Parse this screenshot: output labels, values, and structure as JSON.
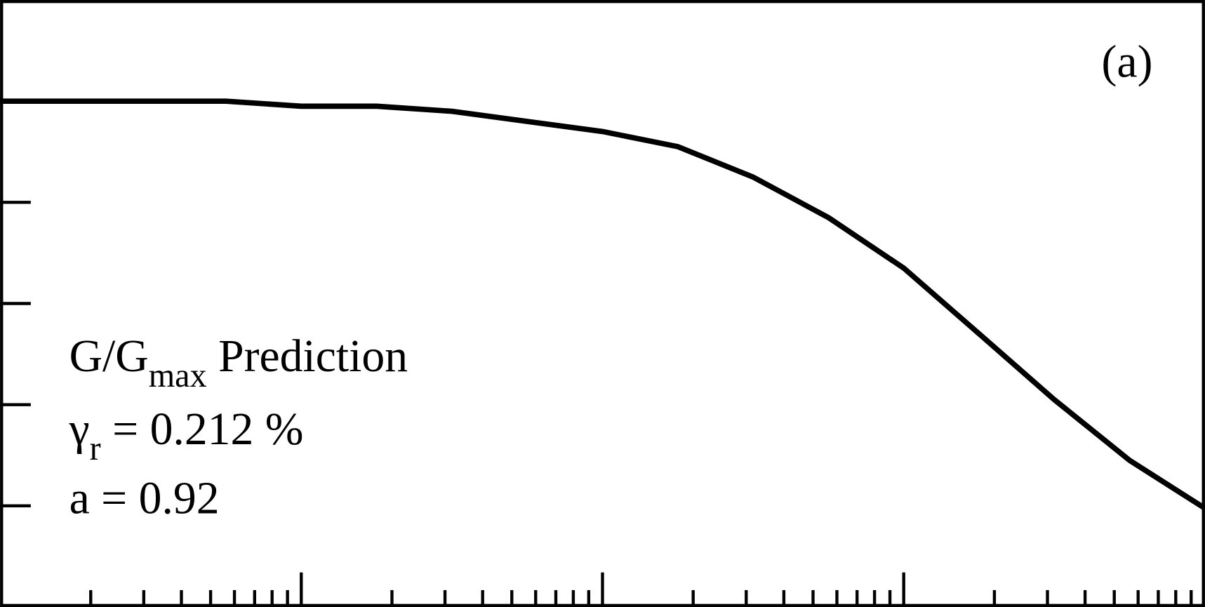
{
  "chart_data": {
    "type": "line",
    "panel_label": "(a)",
    "annotations": [
      {
        "base": "G/G",
        "sub": "max",
        "rest": " Prediction"
      },
      {
        "base": "γ",
        "sub": "r",
        "rest": " = 0.212 %"
      },
      {
        "base": "a = 0.92"
      }
    ],
    "x": [
      0.0001,
      0.000562,
      0.001,
      0.00178,
      0.00316,
      0.01,
      0.0178,
      0.0316,
      0.0562,
      0.1,
      0.178,
      0.316,
      0.562,
      1
    ],
    "values": [
      1.0,
      1.0,
      0.99,
      0.99,
      0.98,
      0.94,
      0.91,
      0.85,
      0.77,
      0.67,
      0.54,
      0.41,
      0.29,
      0.195
    ],
    "color": "#000000",
    "xlim": [
      0.0001,
      1
    ],
    "xlog": true,
    "xticks": [
      0.001,
      0.01,
      0.1
    ],
    "ylim": [
      0,
      1.2
    ],
    "yticks": [
      0.2,
      0.4,
      0.6,
      0.8,
      1.0
    ]
  }
}
